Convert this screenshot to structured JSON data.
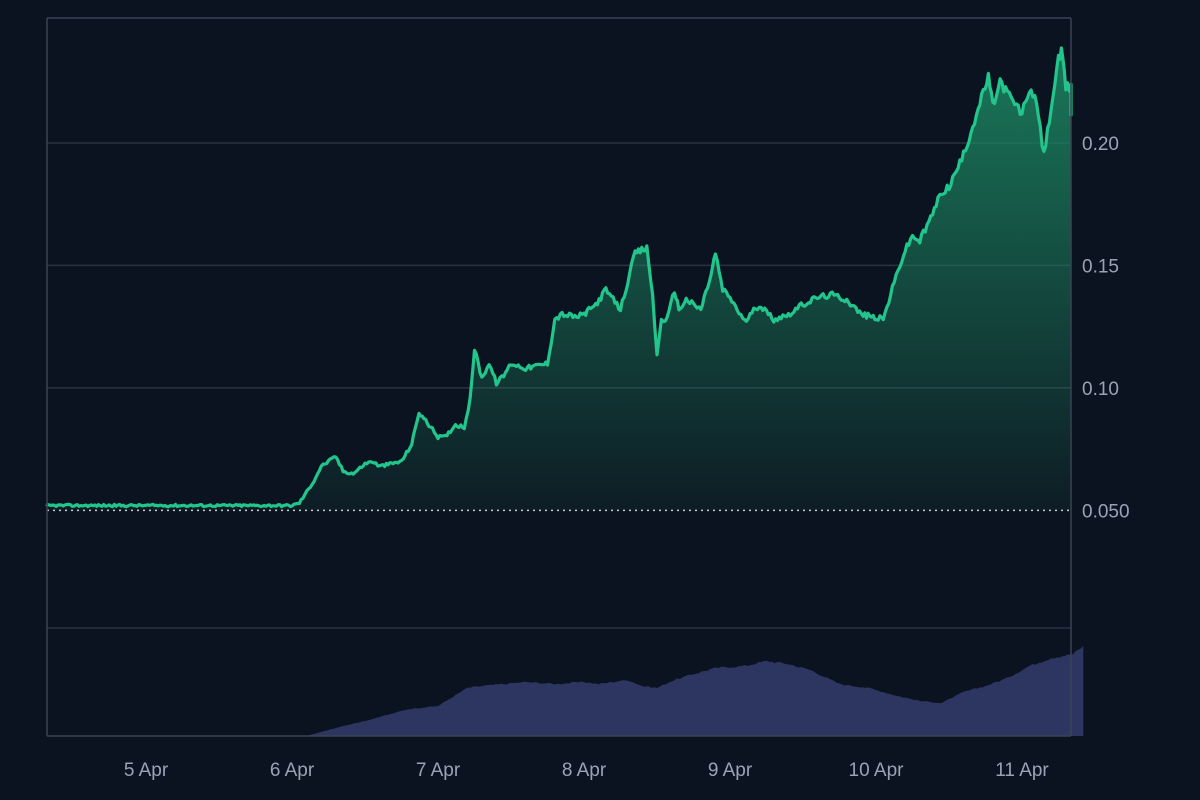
{
  "colors": {
    "background": "#0c1320",
    "frame": "#3a4354",
    "grid": "#2a3242",
    "line": "#22c58b",
    "area_top": "#1c8a63",
    "baseline": "#c8ccd4",
    "volume": "#2c3660",
    "tick_text": "#9aa3b5"
  },
  "chart_data": {
    "type": "area",
    "title": "",
    "xlabel": "",
    "ylabel": "",
    "x_ticks": [
      "5 Apr",
      "6 Apr",
      "7 Apr",
      "8 Apr",
      "9 Apr",
      "10 Apr",
      "11 Apr"
    ],
    "y_ticks": [
      "0.20",
      "0.15",
      "0.10",
      "0.050"
    ],
    "ylim": [
      0.002,
      0.251
    ],
    "baseline_value": 0.05,
    "grid": true,
    "price": {
      "x_days": [
        4.3,
        5.0,
        5.5,
        6.0,
        6.05,
        6.15,
        6.2,
        6.3,
        6.35,
        6.42,
        6.5,
        6.55,
        6.6,
        6.75,
        6.82,
        6.87,
        6.95,
        7.0,
        7.05,
        7.12,
        7.18,
        7.22,
        7.25,
        7.3,
        7.35,
        7.4,
        7.45,
        7.5,
        7.6,
        7.75,
        7.8,
        7.85,
        7.95,
        8.0,
        8.08,
        8.15,
        8.25,
        8.35,
        8.43,
        8.47,
        8.5,
        8.53,
        8.57,
        8.62,
        8.65,
        8.7,
        8.8,
        8.87,
        8.9,
        8.95,
        9.0,
        9.1,
        9.2,
        9.3,
        9.4,
        9.5,
        9.6,
        9.7,
        9.8,
        9.9,
        10.05,
        10.15,
        10.2,
        10.25,
        10.3,
        10.35,
        10.45,
        10.5,
        10.6,
        10.7,
        10.77,
        10.8,
        10.85,
        10.95,
        11.0,
        11.05,
        11.1,
        11.15,
        11.25,
        11.27,
        11.3,
        11.35,
        11.4,
        11.42
      ],
      "y": [
        0.052,
        0.052,
        0.052,
        0.052,
        0.053,
        0.062,
        0.068,
        0.072,
        0.066,
        0.065,
        0.069,
        0.07,
        0.068,
        0.07,
        0.077,
        0.09,
        0.084,
        0.08,
        0.08,
        0.085,
        0.084,
        0.095,
        0.116,
        0.104,
        0.11,
        0.102,
        0.105,
        0.11,
        0.108,
        0.11,
        0.128,
        0.13,
        0.129,
        0.13,
        0.134,
        0.14,
        0.132,
        0.155,
        0.157,
        0.138,
        0.113,
        0.128,
        0.128,
        0.14,
        0.132,
        0.136,
        0.132,
        0.146,
        0.155,
        0.14,
        0.137,
        0.127,
        0.134,
        0.128,
        0.13,
        0.134,
        0.137,
        0.138,
        0.136,
        0.13,
        0.128,
        0.148,
        0.156,
        0.162,
        0.16,
        0.166,
        0.18,
        0.182,
        0.195,
        0.214,
        0.227,
        0.215,
        0.225,
        0.216,
        0.212,
        0.222,
        0.216,
        0.195,
        0.234,
        0.237,
        0.223,
        0.222,
        0.212,
        0.215
      ]
    },
    "volume": {
      "x_days": [
        4.3,
        6.1,
        6.2,
        6.35,
        6.5,
        6.8,
        7.0,
        7.2,
        7.3,
        7.45,
        7.6,
        7.8,
        8.0,
        8.1,
        8.3,
        8.4,
        8.5,
        8.6,
        8.75,
        8.9,
        9.1,
        9.25,
        9.4,
        9.55,
        9.75,
        9.95,
        10.15,
        10.3,
        10.45,
        10.6,
        10.75,
        10.9,
        11.05,
        11.2,
        11.35,
        11.42
      ],
      "relative": [
        0.0,
        0.0,
        0.04,
        0.1,
        0.15,
        0.27,
        0.3,
        0.48,
        0.5,
        0.52,
        0.54,
        0.52,
        0.54,
        0.52,
        0.56,
        0.5,
        0.48,
        0.55,
        0.62,
        0.68,
        0.7,
        0.75,
        0.72,
        0.66,
        0.52,
        0.48,
        0.4,
        0.35,
        0.33,
        0.44,
        0.5,
        0.58,
        0.7,
        0.78,
        0.82,
        0.9
      ]
    }
  }
}
